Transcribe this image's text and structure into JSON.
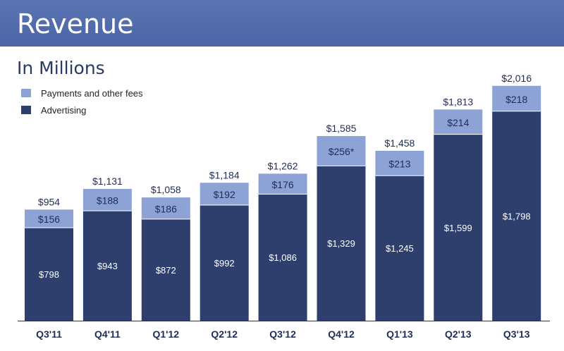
{
  "header": {
    "title": "Revenue"
  },
  "subtitle": "In Millions",
  "colors": {
    "banner": "#4f6aab",
    "advertising": "#2e3f6e",
    "payments": "#8ea3d5",
    "axis": "#333333"
  },
  "chart_data": {
    "type": "bar",
    "stacked": true,
    "title": "Revenue",
    "subtitle": "In Millions",
    "categories": [
      "Q3'11",
      "Q4'11",
      "Q1'12",
      "Q2'12",
      "Q3'12",
      "Q4'12",
      "Q1'13",
      "Q2'13",
      "Q3'13"
    ],
    "series": [
      {
        "name": "Advertising",
        "values": [
          798,
          943,
          872,
          992,
          1086,
          1329,
          1245,
          1599,
          1798
        ],
        "labels": [
          "$798",
          "$943",
          "$872",
          "$992",
          "$1,086",
          "$1,329",
          "$1,245",
          "$1,599",
          "$1,798"
        ]
      },
      {
        "name": "Payments and other fees",
        "values": [
          156,
          188,
          186,
          192,
          176,
          256,
          213,
          214,
          218
        ],
        "labels": [
          "$156",
          "$188",
          "$186",
          "$192",
          "$176",
          "$256*",
          "$213",
          "$214",
          "$218"
        ]
      }
    ],
    "totals": [
      954,
      1131,
      1058,
      1184,
      1262,
      1585,
      1458,
      1813,
      2016
    ],
    "total_labels": [
      "$954",
      "$1,131",
      "$1,058",
      "$1,184",
      "$1,262",
      "$1,585",
      "$1,458",
      "$1,813",
      "$2,016"
    ],
    "legend_position": "top-left",
    "grid": false,
    "ylim": [
      0,
      2200
    ]
  }
}
